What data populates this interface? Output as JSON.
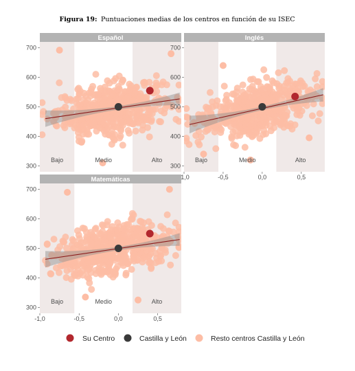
{
  "figure": {
    "label": "Figura 19:",
    "title": "Puntuaciones medias de los centros en función de su ISEC"
  },
  "colors": {
    "su_centro": "#b2282e",
    "castilla_leon": "#3a3a3a",
    "resto": "#fdbda5",
    "band_shade": "#f0e9e8",
    "band_white": "#ffffff",
    "strip": "#b3b3b3",
    "trend_line": "#8b1a1a",
    "ci_ribbon": "#8c8c8c"
  },
  "legend": {
    "items": [
      {
        "key": "su_centro",
        "label": "Su Centro"
      },
      {
        "key": "castilla_leon",
        "label": "Castilla y León"
      },
      {
        "key": "resto",
        "label": "Resto centros Castilla y León"
      }
    ]
  },
  "chart_data": [
    {
      "type": "scatter",
      "panel": "Español",
      "xlim": [
        -1.0,
        0.8
      ],
      "ylim": [
        280,
        720
      ],
      "x_ticks": [
        "-1,0",
        "-0,5",
        "0,0",
        "0,5"
      ],
      "x_tick_values": [
        -1.0,
        -0.5,
        0.0,
        0.5
      ],
      "y_ticks": [
        "300",
        "400",
        "500",
        "600",
        "700"
      ],
      "y_tick_values": [
        300,
        400,
        500,
        600,
        700
      ],
      "bands": [
        {
          "label": "Bajo",
          "from": -1.0,
          "to": -0.56
        },
        {
          "label": "Medio",
          "from": -0.56,
          "to": 0.18
        },
        {
          "label": "Alto",
          "from": 0.18,
          "to": 0.8
        }
      ],
      "trend": {
        "x": [
          -0.93,
          0.78
        ],
        "y": [
          460,
          527
        ]
      },
      "ribbon_halfwidth": {
        "at_ends": 28,
        "at_center": 6
      },
      "castilla_leon": {
        "x": 0.0,
        "y": 500
      },
      "su_centro": {
        "x": 0.4,
        "y": 555
      },
      "highlight_points": [
        {
          "x": -0.75,
          "y": 692
        },
        {
          "x": 0.67,
          "y": 680
        },
        {
          "x": -0.2,
          "y": 310
        },
        {
          "x": -0.47,
          "y": 380
        }
      ]
    },
    {
      "type": "scatter",
      "panel": "Inglés",
      "xlim": [
        -1.0,
        0.8
      ],
      "ylim": [
        280,
        720
      ],
      "x_ticks": [
        "-1,0",
        "-0,5",
        "0,0",
        "0,5"
      ],
      "x_tick_values": [
        -1.0,
        -0.5,
        0.0,
        0.5
      ],
      "y_ticks": [
        "300",
        "400",
        "500",
        "600",
        "700"
      ],
      "y_tick_values": [
        300,
        400,
        500,
        600,
        700
      ],
      "bands": [
        {
          "label": "Bajo",
          "from": -1.0,
          "to": -0.56
        },
        {
          "label": "Medio",
          "from": -0.56,
          "to": 0.18
        },
        {
          "label": "Alto",
          "from": 0.18,
          "to": 0.8
        }
      ],
      "trend": {
        "x": [
          -0.93,
          0.78
        ],
        "y": [
          440,
          541
        ]
      },
      "ribbon_halfwidth": {
        "at_ends": 30,
        "at_center": 6
      },
      "castilla_leon": {
        "x": 0.0,
        "y": 500
      },
      "su_centro": {
        "x": 0.42,
        "y": 535
      },
      "highlight_points": [
        {
          "x": -0.5,
          "y": 640
        },
        {
          "x": 0.6,
          "y": 395
        },
        {
          "x": -0.75,
          "y": 340
        },
        {
          "x": -0.15,
          "y": 320
        }
      ]
    },
    {
      "type": "scatter",
      "panel": "Matemáticas",
      "xlim": [
        -1.0,
        0.8
      ],
      "ylim": [
        280,
        720
      ],
      "x_ticks": [
        "-1,0",
        "-0,5",
        "0,0",
        "0,5"
      ],
      "x_tick_values": [
        -1.0,
        -0.5,
        0.0,
        0.5
      ],
      "y_ticks": [
        "300",
        "400",
        "500",
        "600",
        "700"
      ],
      "y_tick_values": [
        300,
        400,
        500,
        600,
        700
      ],
      "bands": [
        {
          "label": "Bajo",
          "from": -1.0,
          "to": -0.56
        },
        {
          "label": "Medio",
          "from": -0.56,
          "to": 0.18
        },
        {
          "label": "Alto",
          "from": 0.18,
          "to": 0.8
        }
      ],
      "trend": {
        "x": [
          -0.93,
          0.78
        ],
        "y": [
          463,
          530
        ]
      },
      "ribbon_halfwidth": {
        "at_ends": 28,
        "at_center": 6
      },
      "castilla_leon": {
        "x": 0.0,
        "y": 500
      },
      "su_centro": {
        "x": 0.4,
        "y": 550
      },
      "highlight_points": [
        {
          "x": -0.65,
          "y": 690
        },
        {
          "x": 0.65,
          "y": 700
        },
        {
          "x": -0.42,
          "y": 335
        },
        {
          "x": 0.25,
          "y": 325
        }
      ]
    }
  ]
}
